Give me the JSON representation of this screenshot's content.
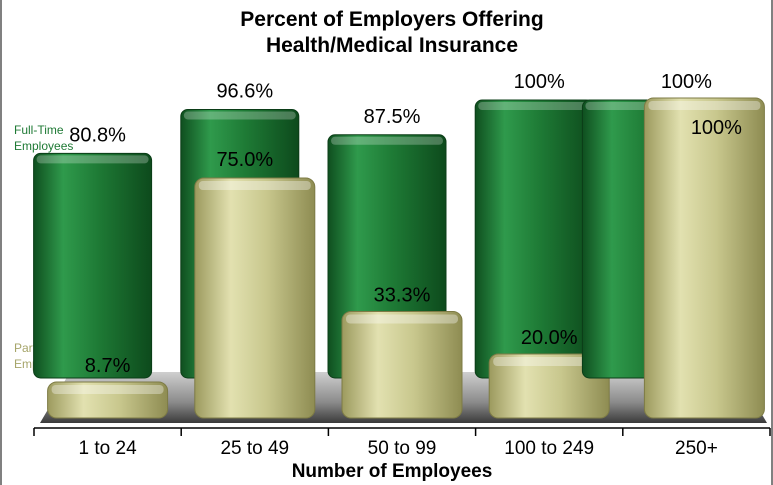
{
  "chart_data": {
    "type": "bar",
    "title_line1": "Percent of Employers Offering",
    "title_line2": "Health/Medical Insurance",
    "xlabel": "Number of Employees",
    "ylabel": "",
    "ylim": [
      0,
      100
    ],
    "categories": [
      "1 to 24",
      "25 to 49",
      "50 to 99",
      "100 to 249",
      "250+"
    ],
    "series": [
      {
        "name": "Full-Time Employees",
        "legend_line1": "Full-Time",
        "legend_line2": "Employees",
        "values": [
          80.8,
          96.6,
          87.5,
          100,
          100
        ],
        "labels": [
          "80.8%",
          "96.6%",
          "87.5%",
          "100%",
          "100%"
        ],
        "color": "#1f7a35"
      },
      {
        "name": "Part-Time Employees",
        "legend_line1": "Part-Time",
        "legend_line2": "Employees",
        "values": [
          8.7,
          75.0,
          33.3,
          20.0,
          100
        ],
        "labels": [
          "8.7%",
          "75.0%",
          "33.3%",
          "20.0%",
          "100%"
        ],
        "color": "#c9c88e"
      }
    ],
    "grid": false,
    "legend": "left"
  }
}
